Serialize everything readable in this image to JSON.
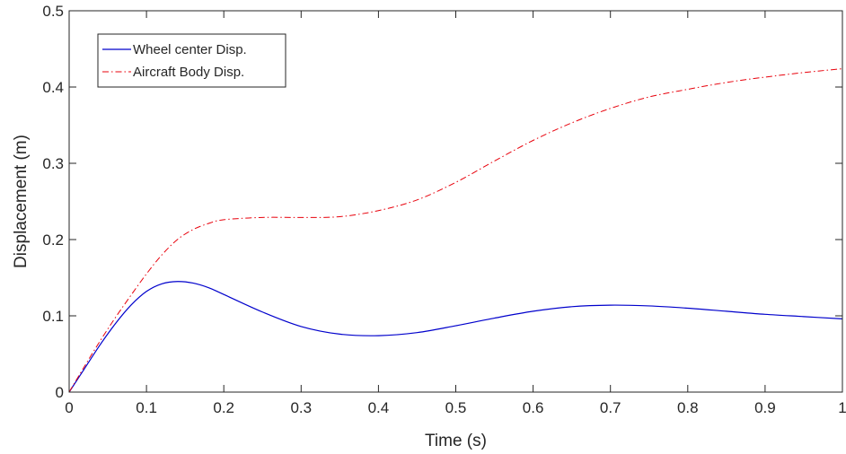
{
  "chart_data": {
    "type": "line",
    "title": "",
    "xlabel": "Time (s)",
    "ylabel": "Displacement (m)",
    "xlim": [
      0,
      1
    ],
    "ylim": [
      0,
      0.5
    ],
    "xticks": [
      0,
      0.1,
      0.2,
      0.3,
      0.4,
      0.5,
      0.6,
      0.7,
      0.8,
      0.9,
      1
    ],
    "xtick_labels": [
      "0",
      "0.1",
      "0.2",
      "0.3",
      "0.4",
      "0.5",
      "0.6",
      "0.7",
      "0.8",
      "0.9",
      "1"
    ],
    "yticks": [
      0,
      0.1,
      0.2,
      0.3,
      0.4,
      0.5
    ],
    "ytick_labels": [
      "0",
      "0.1",
      "0.2",
      "0.3",
      "0.4",
      "0.5"
    ],
    "grid": false,
    "legend_position": "top-left",
    "x": [
      0,
      0.02,
      0.04,
      0.06,
      0.08,
      0.1,
      0.12,
      0.14,
      0.16,
      0.18,
      0.2,
      0.25,
      0.3,
      0.35,
      0.4,
      0.45,
      0.5,
      0.55,
      0.6,
      0.65,
      0.7,
      0.75,
      0.8,
      0.85,
      0.9,
      0.95,
      1.0
    ],
    "series": [
      {
        "name": "Wheel center Disp.",
        "color": "#0000cc",
        "style": "solid",
        "values": [
          0,
          0.031,
          0.062,
          0.09,
          0.114,
          0.132,
          0.142,
          0.145,
          0.143,
          0.137,
          0.128,
          0.105,
          0.086,
          0.076,
          0.074,
          0.078,
          0.087,
          0.097,
          0.106,
          0.112,
          0.114,
          0.113,
          0.11,
          0.106,
          0.102,
          0.099,
          0.096
        ]
      },
      {
        "name": "Aircraft Body Disp.",
        "color": "#e8000b",
        "style": "dashdot",
        "values": [
          0,
          0.034,
          0.067,
          0.098,
          0.127,
          0.155,
          0.18,
          0.2,
          0.213,
          0.221,
          0.226,
          0.229,
          0.229,
          0.23,
          0.238,
          0.252,
          0.275,
          0.303,
          0.33,
          0.353,
          0.372,
          0.387,
          0.397,
          0.406,
          0.413,
          0.419,
          0.424
        ]
      }
    ]
  }
}
